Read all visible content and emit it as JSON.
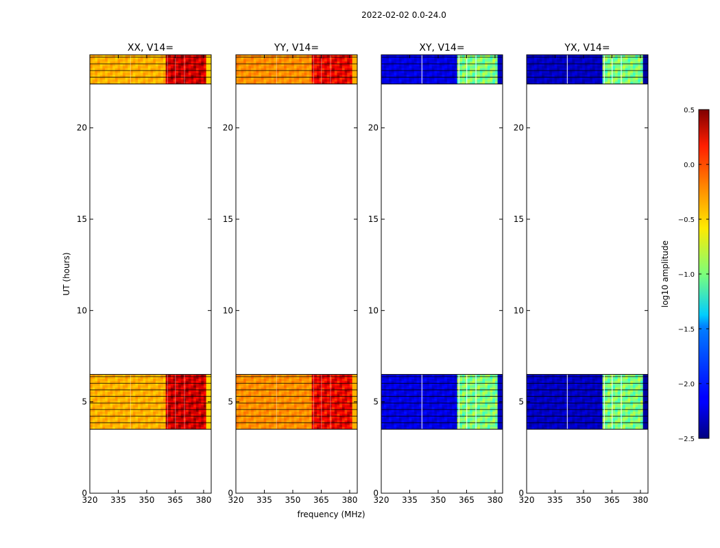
{
  "chart_data": {
    "type": "heatmap",
    "suptitle": "2022-02-02 0.0-24.0",
    "xlabel": "frequency (MHz)",
    "ylabel": "UT (hours)",
    "xlim": [
      320,
      384
    ],
    "ylim": [
      0,
      24
    ],
    "xticks": [
      320,
      335,
      350,
      365,
      380
    ],
    "yticks": [
      0,
      5,
      10,
      15,
      20
    ],
    "time_blocks_hours": [
      [
        3.5,
        6.5
      ],
      [
        22.4,
        24.0
      ]
    ],
    "bright_band_mhz": [
      360,
      381
    ],
    "panels": [
      {
        "title": "XX, V14=",
        "base_log10_amp": -0.4,
        "band_log10_amp": 0.25
      },
      {
        "title": "YY, V14=",
        "base_log10_amp": -0.3,
        "band_log10_amp": 0.15
      },
      {
        "title": "XY, V14=",
        "base_log10_amp": -2.2,
        "band_log10_amp": -1.0
      },
      {
        "title": "YX, V14=",
        "base_log10_amp": -2.3,
        "band_log10_amp": -1.0
      }
    ],
    "colorbar": {
      "label": "log10 amplitude",
      "range": [
        -2.5,
        0.5
      ],
      "ticks": [
        "0.5",
        "0.0",
        "−0.5",
        "−1.0",
        "−1.5",
        "−2.0",
        "−2.5"
      ],
      "tick_values": [
        0.5,
        0.0,
        -0.5,
        -1.0,
        -1.5,
        -2.0,
        -2.5
      ]
    }
  }
}
